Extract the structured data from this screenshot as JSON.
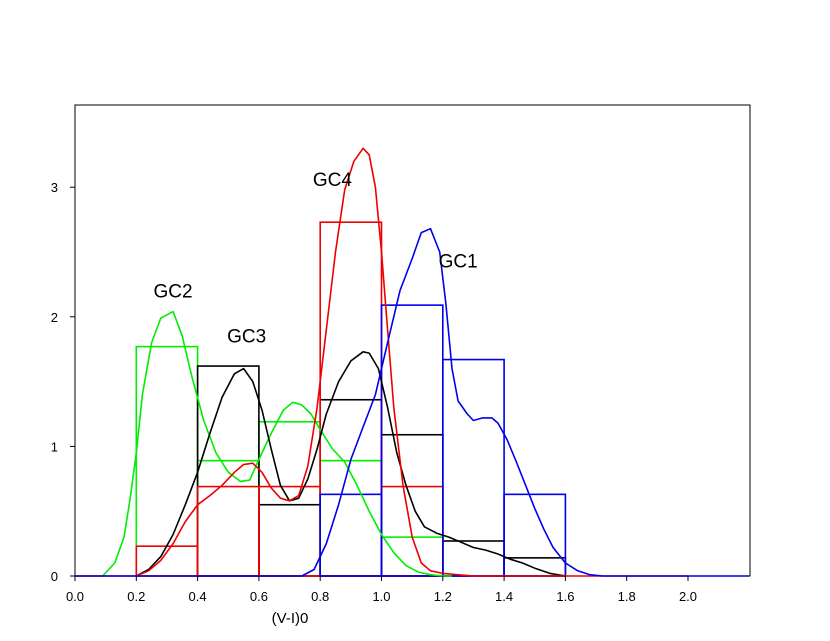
{
  "chart_data": {
    "type": "histogram-density",
    "xlabel": "(V-I)0",
    "ylabel": "",
    "xlim": [
      0.0,
      2.2
    ],
    "ylim": [
      0.0,
      3.6
    ],
    "x_ticks": [
      "0.0",
      "0.2",
      "0.4",
      "0.6",
      "0.8",
      "1.0",
      "1.2",
      "1.4",
      "1.6",
      "1.8",
      "2.0"
    ],
    "y_ticks": [
      "0",
      "1",
      "2",
      "3"
    ],
    "annotations": [
      {
        "text": "GC1",
        "x": 1.25,
        "y": 2.38
      },
      {
        "text": "GC2",
        "x": 0.32,
        "y": 2.15
      },
      {
        "text": "GC3",
        "x": 0.56,
        "y": 1.8
      },
      {
        "text": "GC4",
        "x": 0.84,
        "y": 3.01
      }
    ],
    "series": [
      {
        "color": "#00ee00",
        "hist": {
          "edges": [
            0.2,
            0.4,
            0.6,
            0.8,
            1.0,
            1.2
          ],
          "heights": [
            1.77,
            0.89,
            1.19,
            0.89,
            0.3
          ]
        },
        "density": {
          "x": [
            0.0,
            0.09,
            0.13,
            0.16,
            0.18,
            0.2,
            0.22,
            0.25,
            0.28,
            0.32,
            0.35,
            0.38,
            0.42,
            0.46,
            0.5,
            0.54,
            0.57,
            0.6,
            0.64,
            0.68,
            0.71,
            0.74,
            0.77,
            0.8,
            0.84,
            0.88,
            0.92,
            0.96,
            1.0,
            1.04,
            1.08,
            1.12,
            1.16,
            1.2,
            1.23
          ],
          "y": [
            0.0,
            0.0,
            0.1,
            0.3,
            0.6,
            0.95,
            1.4,
            1.8,
            1.99,
            2.04,
            1.85,
            1.55,
            1.2,
            0.95,
            0.8,
            0.73,
            0.74,
            0.9,
            1.1,
            1.28,
            1.34,
            1.32,
            1.25,
            1.13,
            0.98,
            0.88,
            0.7,
            0.5,
            0.32,
            0.18,
            0.08,
            0.03,
            0.01,
            0.0,
            0.0
          ]
        }
      },
      {
        "color": "#000000",
        "hist": {
          "edges": [
            0.2,
            0.4,
            0.6,
            0.8,
            1.0,
            1.2,
            1.4,
            1.6
          ],
          "heights": [
            0.0,
            1.62,
            0.55,
            1.36,
            1.09,
            0.27,
            0.14
          ]
        },
        "density": {
          "x": [
            0.2,
            0.24,
            0.28,
            0.32,
            0.36,
            0.4,
            0.44,
            0.48,
            0.52,
            0.55,
            0.58,
            0.61,
            0.64,
            0.67,
            0.7,
            0.73,
            0.76,
            0.79,
            0.82,
            0.86,
            0.9,
            0.94,
            0.96,
            0.99,
            1.02,
            1.05,
            1.08,
            1.11,
            1.14,
            1.18,
            1.22,
            1.26,
            1.3,
            1.34,
            1.38,
            1.42,
            1.46,
            1.5,
            1.55,
            1.6
          ],
          "y": [
            0.0,
            0.05,
            0.15,
            0.32,
            0.55,
            0.8,
            1.1,
            1.38,
            1.56,
            1.6,
            1.5,
            1.28,
            0.98,
            0.7,
            0.58,
            0.6,
            0.75,
            0.98,
            1.25,
            1.5,
            1.66,
            1.73,
            1.72,
            1.6,
            1.3,
            0.95,
            0.7,
            0.5,
            0.38,
            0.33,
            0.3,
            0.26,
            0.22,
            0.2,
            0.17,
            0.13,
            0.1,
            0.06,
            0.02,
            0.0
          ]
        }
      },
      {
        "color": "#ee0000",
        "hist": {
          "edges": [
            0.2,
            0.4,
            0.6,
            0.8,
            1.0,
            1.2
          ],
          "heights": [
            0.23,
            0.69,
            0.69,
            2.73,
            0.69
          ]
        },
        "density": {
          "x": [
            0.0,
            0.2,
            0.24,
            0.28,
            0.32,
            0.36,
            0.4,
            0.44,
            0.48,
            0.52,
            0.55,
            0.58,
            0.61,
            0.64,
            0.67,
            0.7,
            0.73,
            0.76,
            0.79,
            0.82,
            0.85,
            0.88,
            0.91,
            0.94,
            0.96,
            0.98,
            1.0,
            1.02,
            1.04,
            1.07,
            1.1,
            1.13,
            1.16,
            1.2,
            1.3,
            1.5,
            2.0
          ],
          "y": [
            0.0,
            0.0,
            0.04,
            0.12,
            0.25,
            0.42,
            0.55,
            0.62,
            0.7,
            0.8,
            0.86,
            0.87,
            0.8,
            0.68,
            0.6,
            0.58,
            0.62,
            0.85,
            1.3,
            1.9,
            2.5,
            2.98,
            3.2,
            3.3,
            3.25,
            3.0,
            2.5,
            1.9,
            1.3,
            0.7,
            0.3,
            0.1,
            0.04,
            0.02,
            0.0,
            0.0,
            0.0
          ]
        }
      },
      {
        "color": "#0000ee",
        "hist": {
          "edges": [
            0.8,
            1.0,
            1.2,
            1.4,
            1.6
          ],
          "heights": [
            0.63,
            2.09,
            1.67,
            0.63
          ]
        },
        "density": {
          "x": [
            0.0,
            0.74,
            0.78,
            0.82,
            0.86,
            0.9,
            0.94,
            0.98,
            1.02,
            1.06,
            1.1,
            1.13,
            1.16,
            1.19,
            1.21,
            1.23,
            1.25,
            1.28,
            1.3,
            1.33,
            1.36,
            1.38,
            1.41,
            1.44,
            1.47,
            1.5,
            1.53,
            1.56,
            1.6,
            1.64,
            1.68,
            1.72,
            1.8,
            2.2
          ],
          "y": [
            0.0,
            0.0,
            0.05,
            0.25,
            0.55,
            0.9,
            1.15,
            1.4,
            1.8,
            2.2,
            2.45,
            2.65,
            2.68,
            2.5,
            2.1,
            1.6,
            1.35,
            1.25,
            1.2,
            1.22,
            1.22,
            1.18,
            1.05,
            0.88,
            0.7,
            0.52,
            0.36,
            0.22,
            0.1,
            0.04,
            0.01,
            0.0,
            0.0,
            0.0
          ]
        }
      }
    ]
  }
}
